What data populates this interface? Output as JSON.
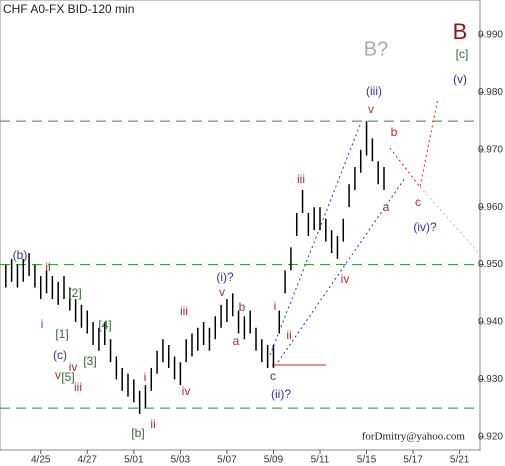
{
  "chart_data": {
    "type": "ohlc",
    "title": "CHF A0-FX BID-120 min",
    "credit": "forDmitry@yahoo.com",
    "color": "#000000",
    "x": [
      0,
      1,
      2,
      3,
      4,
      5,
      6,
      7,
      8,
      9,
      10,
      11,
      12,
      13,
      14,
      15,
      16,
      17,
      18,
      19,
      20,
      21,
      22,
      23,
      24,
      25,
      26,
      27,
      28,
      29,
      30,
      31,
      32,
      33,
      34,
      35,
      36,
      37,
      38,
      39,
      40,
      41,
      42,
      43,
      44,
      45,
      46,
      47,
      48,
      49,
      50,
      51,
      52,
      53,
      54,
      55,
      56,
      57,
      58,
      59,
      60,
      61,
      62,
      63,
      64,
      65
    ],
    "high": [
      0.95,
      0.951,
      0.95,
      0.951,
      0.952,
      0.95,
      0.948,
      0.949,
      0.948,
      0.947,
      0.948,
      0.946,
      0.944,
      0.943,
      0.942,
      0.94,
      0.939,
      0.94,
      0.937,
      0.934,
      0.932,
      0.931,
      0.93,
      0.928,
      0.929,
      0.932,
      0.935,
      0.937,
      0.936,
      0.934,
      0.933,
      0.937,
      0.938,
      0.939,
      0.94,
      0.939,
      0.941,
      0.943,
      0.944,
      0.945,
      0.942,
      0.941,
      0.942,
      0.939,
      0.937,
      0.936,
      0.936,
      0.942,
      0.949,
      0.953,
      0.959,
      0.963,
      0.959,
      0.96,
      0.96,
      0.958,
      0.956,
      0.955,
      0.958,
      0.964,
      0.967,
      0.97,
      0.975,
      0.972,
      0.968,
      0.967
    ],
    "low": [
      0.946,
      0.947,
      0.946,
      0.947,
      0.948,
      0.946,
      0.944,
      0.945,
      0.944,
      0.943,
      0.944,
      0.942,
      0.94,
      0.939,
      0.938,
      0.936,
      0.935,
      0.936,
      0.933,
      0.93,
      0.928,
      0.927,
      0.926,
      0.924,
      0.925,
      0.928,
      0.931,
      0.933,
      0.932,
      0.93,
      0.929,
      0.933,
      0.934,
      0.935,
      0.936,
      0.935,
      0.937,
      0.939,
      0.94,
      0.941,
      0.938,
      0.937,
      0.938,
      0.935,
      0.933,
      0.932,
      0.932,
      0.938,
      0.945,
      0.949,
      0.955,
      0.959,
      0.955,
      0.956,
      0.956,
      0.954,
      0.952,
      0.951,
      0.954,
      0.96,
      0.963,
      0.966,
      0.969,
      0.968,
      0.964,
      0.963
    ],
    "xlim": [
      -1,
      81.5
    ],
    "xticks": [
      {
        "value": 6,
        "label": "4/25"
      },
      {
        "value": 14,
        "label": "4/27"
      },
      {
        "value": 22,
        "label": "5/01"
      },
      {
        "value": 30,
        "label": "5/03"
      },
      {
        "value": 38,
        "label": "5/07"
      },
      {
        "value": 46,
        "label": "5/09"
      },
      {
        "value": 54,
        "label": "5/11"
      },
      {
        "value": 62,
        "label": "5/15"
      },
      {
        "value": 70,
        "label": "5/17"
      },
      {
        "value": 78,
        "label": "5/21"
      }
    ],
    "ylim": [
      0.9177,
      0.9961
    ],
    "yticks": [
      {
        "value": 0.92,
        "label": "0.920"
      },
      {
        "value": 0.93,
        "label": "0.930"
      },
      {
        "value": 0.94,
        "label": "0.940"
      },
      {
        "value": 0.95,
        "label": "0.950"
      },
      {
        "value": 0.96,
        "label": "0.960"
      },
      {
        "value": 0.97,
        "label": "0.970"
      },
      {
        "value": 0.98,
        "label": "0.980"
      },
      {
        "value": 0.99,
        "label": "0.990"
      }
    ],
    "levels": [
      0.975,
      0.95,
      0.925
    ],
    "level_color": "#2e8b2e",
    "annotations": [
      {
        "text": "(b)",
        "color": "#333399"
      },
      {
        "text": "ii",
        "color": "#993333"
      },
      {
        "text": "i",
        "color": "#993333"
      },
      {
        "text": "[2]",
        "color": "#336633"
      },
      {
        "text": "[1]",
        "color": "#336633"
      },
      {
        "text": "[4]",
        "color": "#336633"
      },
      {
        "text": "[3]",
        "color": "#336633"
      },
      {
        "text": "(c)",
        "color": "#333399"
      },
      {
        "text": "iv",
        "color": "#993333"
      },
      {
        "text": "v",
        "color": "#993333"
      },
      {
        "text": "[5]",
        "color": "#336633"
      },
      {
        "text": "iii",
        "color": "#993333"
      },
      {
        "text": "i",
        "color": "#993333"
      },
      {
        "text": "[b]",
        "color": "#336633"
      },
      {
        "text": "ii",
        "color": "#993333"
      },
      {
        "text": "iii",
        "color": "#993333"
      },
      {
        "text": "iv",
        "color": "#993333"
      },
      {
        "text": "(i)?",
        "color": "#333399"
      },
      {
        "text": "v",
        "color": "#993333"
      },
      {
        "text": "b",
        "color": "#993333"
      },
      {
        "text": "a",
        "color": "#993333"
      },
      {
        "text": "i",
        "color": "#993333"
      },
      {
        "text": "ii",
        "color": "#993333"
      },
      {
        "text": "c",
        "color": "#333399"
      },
      {
        "text": "(ii)?",
        "color": "#333399"
      },
      {
        "text": "iii",
        "color": "#993333"
      },
      {
        "text": "iv",
        "color": "#993333"
      },
      {
        "text": "(iii)",
        "color": "#333399"
      },
      {
        "text": "v",
        "color": "#993333"
      },
      {
        "text": "b",
        "color": "#cc2222"
      },
      {
        "text": "a",
        "color": "#993333"
      },
      {
        "text": "c",
        "color": "#cc2222"
      },
      {
        "text": "(iv)?",
        "color": "#333399"
      },
      {
        "text": "(v)",
        "color": "#333399"
      },
      {
        "text": "B?",
        "color": "#aaaaaa"
      },
      {
        "text": "B",
        "color": "#8b1a1a"
      },
      {
        "text": "[c]",
        "color": "#336633"
      }
    ]
  }
}
